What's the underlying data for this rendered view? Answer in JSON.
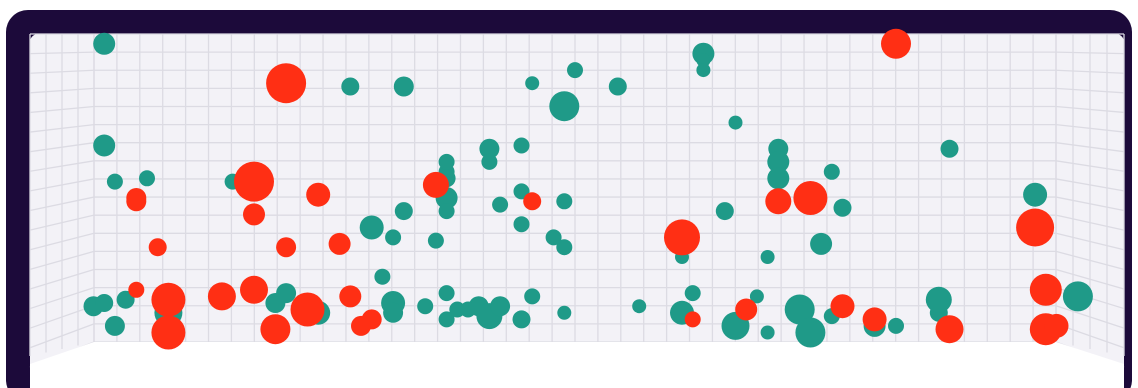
{
  "colors": {
    "frame": "#1c0a3a",
    "background": "#f3f2f7",
    "floor": "#ffffff",
    "grid": "#dcdbe3",
    "teal": "#1f9a88",
    "red": "#ff2f14"
  },
  "chart_data": {
    "type": "scatter",
    "projection": "3d-room",
    "grid": true,
    "legend": "none",
    "xlim": [
      0,
      100
    ],
    "ylim": [
      0,
      100
    ],
    "series": [
      {
        "color": "teal",
        "points": [
          {
            "x": 6,
            "y": 97,
            "s": 11
          },
          {
            "x": 6,
            "y": 66,
            "s": 11
          },
          {
            "x": 7,
            "y": 55,
            "s": 8
          },
          {
            "x": 10,
            "y": 56,
            "s": 8
          },
          {
            "x": 5,
            "y": 17,
            "s": 10
          },
          {
            "x": 6,
            "y": 18,
            "s": 9
          },
          {
            "x": 7,
            "y": 11,
            "s": 10
          },
          {
            "x": 8,
            "y": 19,
            "s": 9
          },
          {
            "x": 12,
            "y": 15,
            "s": 14
          },
          {
            "x": 18,
            "y": 55,
            "s": 8
          },
          {
            "x": 22,
            "y": 18,
            "s": 10
          },
          {
            "x": 23,
            "y": 21,
            "s": 10
          },
          {
            "x": 26,
            "y": 15,
            "s": 12
          },
          {
            "x": 29,
            "y": 84,
            "s": 9
          },
          {
            "x": 34,
            "y": 84,
            "s": 10
          },
          {
            "x": 31,
            "y": 41,
            "s": 12
          },
          {
            "x": 33,
            "y": 38,
            "s": 8
          },
          {
            "x": 32,
            "y": 26,
            "s": 8
          },
          {
            "x": 34,
            "y": 46,
            "s": 9
          },
          {
            "x": 33,
            "y": 18,
            "s": 12
          },
          {
            "x": 33,
            "y": 15,
            "s": 10
          },
          {
            "x": 36,
            "y": 17,
            "s": 8
          },
          {
            "x": 37,
            "y": 37,
            "s": 8
          },
          {
            "x": 38,
            "y": 56,
            "s": 9
          },
          {
            "x": 38,
            "y": 58,
            "s": 8
          },
          {
            "x": 38,
            "y": 61,
            "s": 8
          },
          {
            "x": 38,
            "y": 50,
            "s": 11
          },
          {
            "x": 38,
            "y": 46,
            "s": 8
          },
          {
            "x": 38,
            "y": 21,
            "s": 8
          },
          {
            "x": 38,
            "y": 13,
            "s": 8
          },
          {
            "x": 39,
            "y": 16,
            "s": 8
          },
          {
            "x": 40,
            "y": 16,
            "s": 8
          },
          {
            "x": 41,
            "y": 17,
            "s": 10
          },
          {
            "x": 42,
            "y": 14,
            "s": 13
          },
          {
            "x": 43,
            "y": 17,
            "s": 10
          },
          {
            "x": 42,
            "y": 65,
            "s": 10
          },
          {
            "x": 42,
            "y": 61,
            "s": 8
          },
          {
            "x": 43,
            "y": 48,
            "s": 8
          },
          {
            "x": 45,
            "y": 52,
            "s": 8
          },
          {
            "x": 45,
            "y": 66,
            "s": 8
          },
          {
            "x": 45,
            "y": 42,
            "s": 8
          },
          {
            "x": 45,
            "y": 13,
            "s": 9
          },
          {
            "x": 46,
            "y": 20,
            "s": 8
          },
          {
            "x": 48,
            "y": 38,
            "s": 8
          },
          {
            "x": 49,
            "y": 49,
            "s": 8
          },
          {
            "x": 49,
            "y": 35,
            "s": 8
          },
          {
            "x": 49,
            "y": 15,
            "s": 7
          },
          {
            "x": 46,
            "y": 85,
            "s": 7
          },
          {
            "x": 50,
            "y": 89,
            "s": 8
          },
          {
            "x": 49,
            "y": 78,
            "s": 15
          },
          {
            "x": 54,
            "y": 84,
            "s": 9
          },
          {
            "x": 56,
            "y": 17,
            "s": 7
          },
          {
            "x": 60,
            "y": 15,
            "s": 12
          },
          {
            "x": 60,
            "y": 32,
            "s": 7
          },
          {
            "x": 61,
            "y": 21,
            "s": 8
          },
          {
            "x": 62,
            "y": 94,
            "s": 11
          },
          {
            "x": 62,
            "y": 92,
            "s": 7
          },
          {
            "x": 62,
            "y": 89,
            "s": 7
          },
          {
            "x": 64,
            "y": 46,
            "s": 9
          },
          {
            "x": 65,
            "y": 11,
            "s": 14
          },
          {
            "x": 65,
            "y": 73,
            "s": 7
          },
          {
            "x": 67,
            "y": 20,
            "s": 7
          },
          {
            "x": 68,
            "y": 32,
            "s": 7
          },
          {
            "x": 68,
            "y": 9,
            "s": 7
          },
          {
            "x": 69,
            "y": 65,
            "s": 10
          },
          {
            "x": 69,
            "y": 61,
            "s": 11
          },
          {
            "x": 69,
            "y": 56,
            "s": 11
          },
          {
            "x": 71,
            "y": 16,
            "s": 15
          },
          {
            "x": 72,
            "y": 9,
            "s": 15
          },
          {
            "x": 73,
            "y": 36,
            "s": 11
          },
          {
            "x": 74,
            "y": 58,
            "s": 8
          },
          {
            "x": 75,
            "y": 47,
            "s": 9
          },
          {
            "x": 74,
            "y": 14,
            "s": 8
          },
          {
            "x": 78,
            "y": 11,
            "s": 11
          },
          {
            "x": 80,
            "y": 11,
            "s": 8
          },
          {
            "x": 84,
            "y": 15,
            "s": 9
          },
          {
            "x": 84,
            "y": 19,
            "s": 13
          },
          {
            "x": 85,
            "y": 65,
            "s": 9
          },
          {
            "x": 93,
            "y": 51,
            "s": 12
          },
          {
            "x": 97,
            "y": 20,
            "s": 15
          }
        ]
      },
      {
        "color": "red",
        "points": [
          {
            "x": 9,
            "y": 50,
            "s": 10
          },
          {
            "x": 9,
            "y": 49,
            "s": 10
          },
          {
            "x": 11,
            "y": 35,
            "s": 9
          },
          {
            "x": 9,
            "y": 22,
            "s": 8
          },
          {
            "x": 12,
            "y": 19,
            "s": 17
          },
          {
            "x": 12,
            "y": 9,
            "s": 17
          },
          {
            "x": 17,
            "y": 20,
            "s": 14
          },
          {
            "x": 20,
            "y": 22,
            "s": 14
          },
          {
            "x": 20,
            "y": 55,
            "s": 20
          },
          {
            "x": 20,
            "y": 45,
            "s": 11
          },
          {
            "x": 23,
            "y": 85,
            "s": 20
          },
          {
            "x": 23,
            "y": 35,
            "s": 10
          },
          {
            "x": 26,
            "y": 51,
            "s": 12
          },
          {
            "x": 25,
            "y": 16,
            "s": 17
          },
          {
            "x": 22,
            "y": 10,
            "s": 15
          },
          {
            "x": 28,
            "y": 36,
            "s": 11
          },
          {
            "x": 29,
            "y": 20,
            "s": 11
          },
          {
            "x": 31,
            "y": 13,
            "s": 10
          },
          {
            "x": 30,
            "y": 11,
            "s": 10
          },
          {
            "x": 37,
            "y": 54,
            "s": 13
          },
          {
            "x": 46,
            "y": 49,
            "s": 9
          },
          {
            "x": 60,
            "y": 38,
            "s": 18
          },
          {
            "x": 61,
            "y": 13,
            "s": 8
          },
          {
            "x": 66,
            "y": 16,
            "s": 11
          },
          {
            "x": 69,
            "y": 49,
            "s": 13
          },
          {
            "x": 72,
            "y": 50,
            "s": 17
          },
          {
            "x": 75,
            "y": 17,
            "s": 12
          },
          {
            "x": 78,
            "y": 13,
            "s": 12
          },
          {
            "x": 80,
            "y": 97,
            "s": 15
          },
          {
            "x": 85,
            "y": 10,
            "s": 14
          },
          {
            "x": 93,
            "y": 41,
            "s": 19
          },
          {
            "x": 94,
            "y": 22,
            "s": 16
          },
          {
            "x": 94,
            "y": 10,
            "s": 16
          },
          {
            "x": 95,
            "y": 11,
            "s": 12
          }
        ]
      }
    ]
  }
}
